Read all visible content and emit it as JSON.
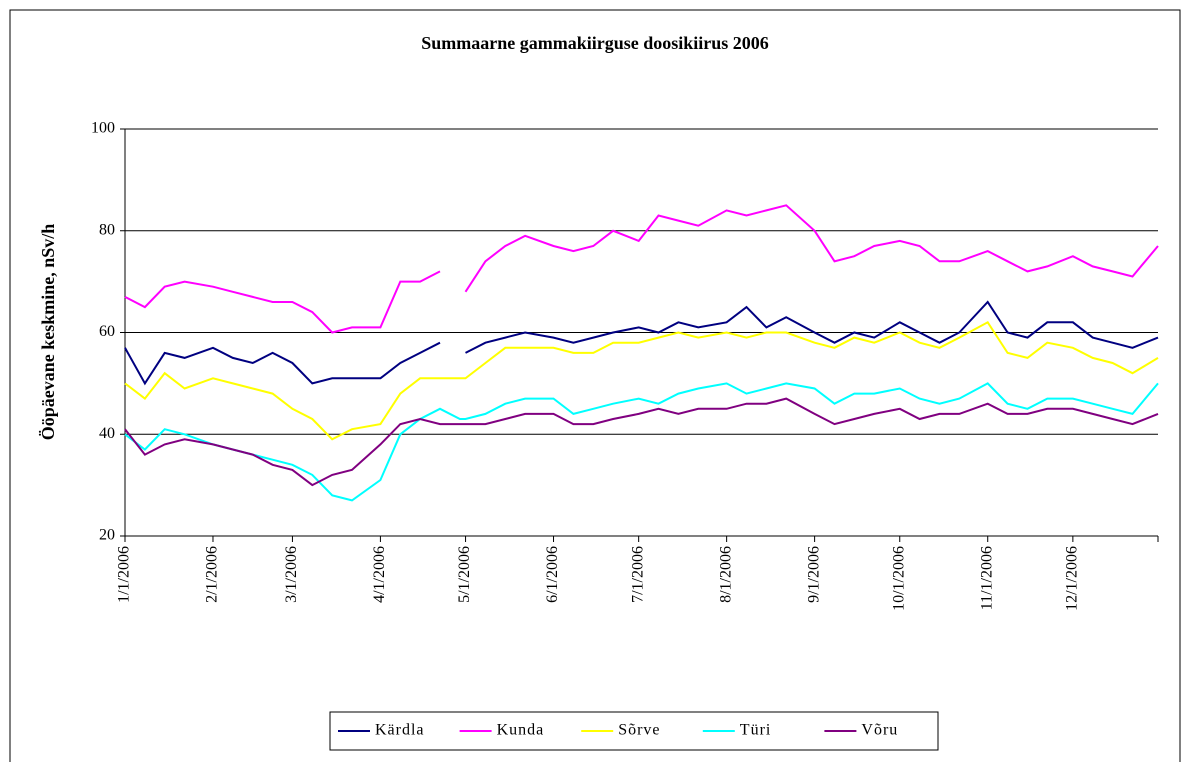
{
  "chart_data": {
    "type": "line",
    "title": "Summaarne gammakiirguse doosikiirus 2006",
    "y_label": "Ööpäevane keskmine, nSv/h",
    "x": [
      "1/1/2006",
      "1/8/2006",
      "1/15/2006",
      "1/22/2006",
      "2/1/2006",
      "2/8/2006",
      "2/15/2006",
      "2/22/2006",
      "3/1/2006",
      "3/8/2006",
      "3/15/2006",
      "3/22/2006",
      "4/1/2006",
      "4/8/2006",
      "4/15/2006",
      "4/22/2006",
      "4/29/2006",
      "5/1/2006",
      "5/8/2006",
      "5/15/2006",
      "5/22/2006",
      "6/1/2006",
      "6/8/2006",
      "6/15/2006",
      "6/22/2006",
      "7/1/2006",
      "7/8/2006",
      "7/15/2006",
      "7/22/2006",
      "8/1/2006",
      "8/8/2006",
      "8/15/2006",
      "8/22/2006",
      "9/1/2006",
      "9/8/2006",
      "9/15/2006",
      "9/22/2006",
      "10/1/2006",
      "10/8/2006",
      "10/15/2006",
      "10/22/2006",
      "11/1/2006",
      "11/8/2006",
      "11/15/2006",
      "11/22/2006",
      "12/1/2006",
      "12/8/2006",
      "12/15/2006",
      "12/22/2006",
      "12/31/2006"
    ],
    "xlim": [
      "1/1/2006",
      "12/31/2006"
    ],
    "xticks": [
      "1/1/2006",
      "2/1/2006",
      "3/1/2006",
      "4/1/2006",
      "5/1/2006",
      "6/1/2006",
      "7/1/2006",
      "8/1/2006",
      "9/1/2006",
      "10/1/2006",
      "11/1/2006",
      "12/1/2006"
    ],
    "ylim": [
      20,
      100
    ],
    "yticks": [
      20,
      40,
      60,
      80,
      100
    ],
    "grid": true,
    "legend": "bottom",
    "series": [
      {
        "name": "Kärdla",
        "color": "#000080",
        "values": [
          57,
          50,
          56,
          55,
          57,
          55,
          54,
          56,
          54,
          50,
          51,
          51,
          51,
          54,
          56,
          58,
          null,
          56,
          58,
          59,
          60,
          59,
          58,
          59,
          60,
          61,
          60,
          62,
          61,
          62,
          65,
          61,
          63,
          60,
          58,
          60,
          59,
          62,
          60,
          58,
          60,
          66,
          60,
          59,
          62,
          62,
          59,
          58,
          57,
          59
        ]
      },
      {
        "name": "Kunda",
        "color": "#ff00ff",
        "values": [
          67,
          65,
          69,
          70,
          69,
          68,
          67,
          66,
          66,
          64,
          60,
          61,
          61,
          70,
          70,
          72,
          null,
          68,
          74,
          77,
          79,
          77,
          76,
          77,
          80,
          78,
          83,
          82,
          81,
          84,
          83,
          84,
          85,
          80,
          74,
          75,
          77,
          78,
          77,
          74,
          74,
          76,
          74,
          72,
          73,
          75,
          73,
          72,
          71,
          77
        ]
      },
      {
        "name": "Sõrve",
        "color": "#ffff00",
        "values": [
          50,
          47,
          52,
          49,
          51,
          50,
          49,
          48,
          45,
          43,
          39,
          41,
          42,
          48,
          51,
          51,
          51,
          51,
          54,
          57,
          57,
          57,
          56,
          56,
          58,
          58,
          59,
          60,
          59,
          60,
          59,
          60,
          60,
          58,
          57,
          59,
          58,
          60,
          58,
          57,
          59,
          62,
          56,
          55,
          58,
          57,
          55,
          54,
          52,
          55
        ]
      },
      {
        "name": "Türi",
        "color": "#00ffff",
        "values": [
          40,
          37,
          41,
          40,
          38,
          37,
          36,
          35,
          34,
          32,
          28,
          27,
          31,
          40,
          43,
          45,
          43,
          43,
          44,
          46,
          47,
          47,
          44,
          45,
          46,
          47,
          46,
          48,
          49,
          50,
          48,
          49,
          50,
          49,
          46,
          48,
          48,
          49,
          47,
          46,
          47,
          50,
          46,
          45,
          47,
          47,
          46,
          45,
          44,
          50
        ]
      },
      {
        "name": "Võru",
        "color": "#800080",
        "values": [
          41,
          36,
          38,
          39,
          38,
          37,
          36,
          34,
          33,
          30,
          32,
          33,
          38,
          42,
          43,
          42,
          42,
          42,
          42,
          43,
          44,
          44,
          42,
          42,
          43,
          44,
          45,
          44,
          45,
          45,
          46,
          46,
          47,
          44,
          42,
          43,
          44,
          45,
          43,
          44,
          44,
          46,
          44,
          44,
          45,
          45,
          44,
          43,
          42,
          44
        ]
      }
    ]
  }
}
